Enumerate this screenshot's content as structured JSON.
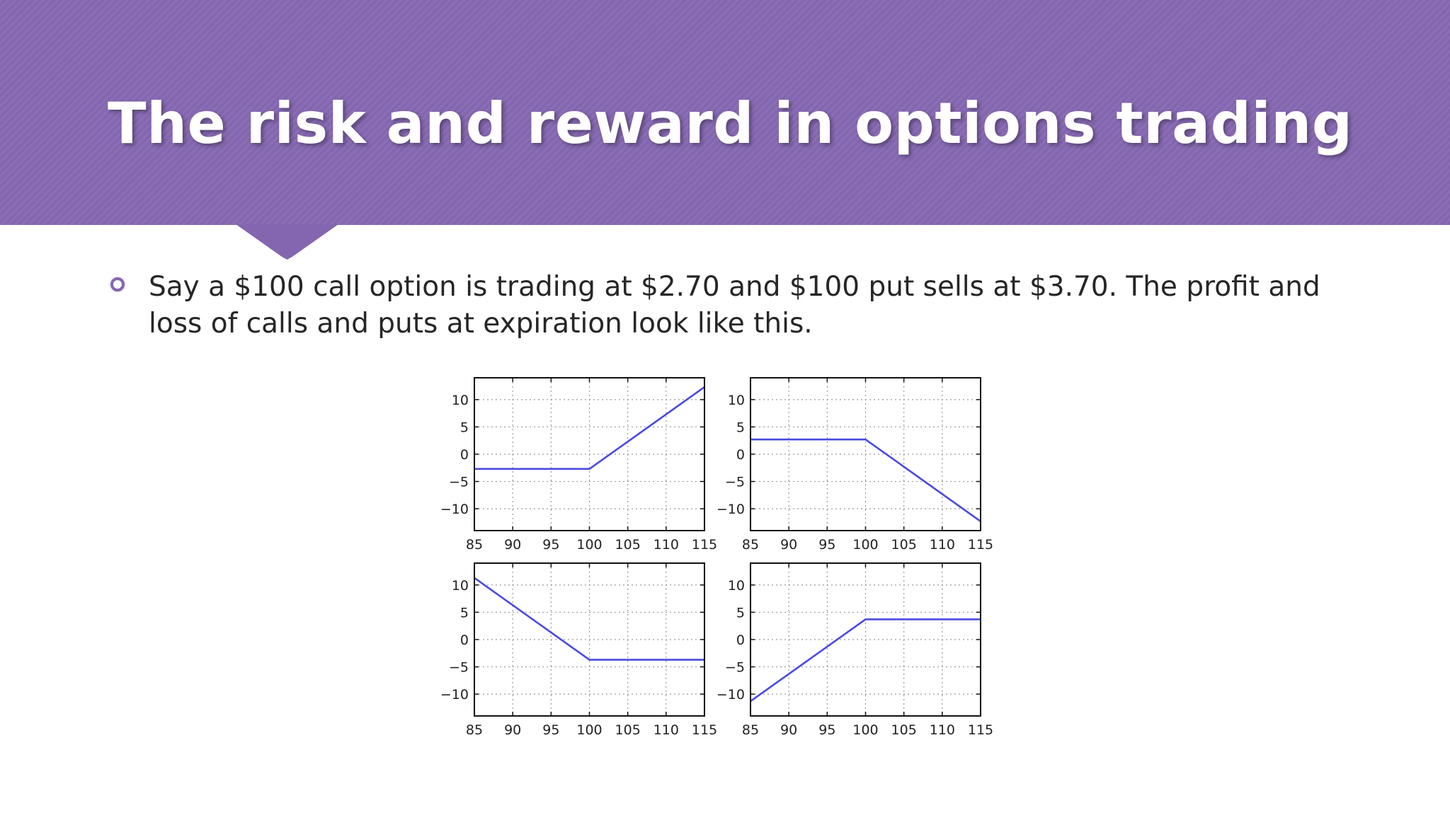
{
  "slide": {
    "title": "The risk and reward in options trading",
    "bullet": "Say a $100 call option is trading at $2.70 and $100 put sells at $3.70. The profit and loss of calls and puts at expiration look like this.",
    "accent_color": "#8466b0",
    "bullet_icon": "hollow-circle-icon"
  },
  "chart_data": [
    {
      "type": "line",
      "position": "top-left",
      "title": "",
      "xlabel": "",
      "ylabel": "",
      "xlim": [
        85,
        115
      ],
      "ylim": [
        -14,
        14
      ],
      "xticks": [
        85,
        90,
        95,
        100,
        105,
        110,
        115
      ],
      "yticks": [
        10,
        5,
        0,
        -5,
        -10
      ],
      "grid": true,
      "series": [
        {
          "color": "#4a4ae0",
          "x": [
            85,
            100,
            115
          ],
          "y": [
            -2.7,
            -2.7,
            12.3
          ]
        }
      ]
    },
    {
      "type": "line",
      "position": "top-right",
      "title": "",
      "xlabel": "",
      "ylabel": "",
      "xlim": [
        85,
        115
      ],
      "ylim": [
        -14,
        14
      ],
      "xticks": [
        85,
        90,
        95,
        100,
        105,
        110,
        115
      ],
      "yticks": [
        10,
        5,
        0,
        -5,
        -10
      ],
      "grid": true,
      "series": [
        {
          "color": "#4a4ae0",
          "x": [
            85,
            100,
            115
          ],
          "y": [
            2.7,
            2.7,
            -12.3
          ]
        }
      ]
    },
    {
      "type": "line",
      "position": "bottom-left",
      "title": "",
      "xlabel": "",
      "ylabel": "",
      "xlim": [
        85,
        115
      ],
      "ylim": [
        -14,
        14
      ],
      "xticks": [
        85,
        90,
        95,
        100,
        105,
        110,
        115
      ],
      "yticks": [
        10,
        5,
        0,
        -5,
        -10
      ],
      "grid": true,
      "series": [
        {
          "color": "#4a4ae0",
          "x": [
            85,
            100,
            115
          ],
          "y": [
            11.3,
            -3.7,
            -3.7
          ]
        }
      ]
    },
    {
      "type": "line",
      "position": "bottom-right",
      "title": "",
      "xlabel": "",
      "ylabel": "",
      "xlim": [
        85,
        115
      ],
      "ylim": [
        -14,
        14
      ],
      "xticks": [
        85,
        90,
        95,
        100,
        105,
        110,
        115
      ],
      "yticks": [
        10,
        5,
        0,
        -5,
        -10
      ],
      "grid": true,
      "series": [
        {
          "color": "#4a4ae0",
          "x": [
            85,
            100,
            115
          ],
          "y": [
            -11.3,
            3.7,
            3.7
          ]
        }
      ]
    }
  ]
}
